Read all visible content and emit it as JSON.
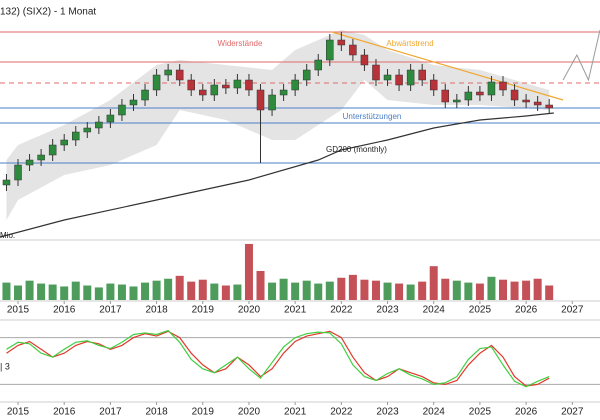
{
  "chart_data": {
    "type": "candlestick",
    "title": "132) (SIX2) - 1 Monat",
    "xlim": [
      2014.61,
      2027.6
    ],
    "xticks": [
      2015,
      2016,
      2017,
      2018,
      2019,
      2020,
      2021,
      2022,
      2023,
      2024,
      2025,
      2026,
      2027
    ],
    "ylim": [
      0,
      240
    ],
    "up_color": "#2e8b3e",
    "down_color": "#b8323a",
    "x": [
      2014.75,
      2015,
      2015.25,
      2015.5,
      2015.75,
      2016,
      2016.25,
      2016.5,
      2016.75,
      2017,
      2017.25,
      2017.5,
      2017.75,
      2018,
      2018.25,
      2018.5,
      2018.75,
      2019,
      2019.25,
      2019.5,
      2019.75,
      2020,
      2020.25,
      2020.5,
      2020.75,
      2021,
      2021.25,
      2021.5,
      2021.75,
      2022,
      2022.25,
      2022.5,
      2022.75,
      2023,
      2023.25,
      2023.5,
      2023.75,
      2024,
      2024.25,
      2024.5,
      2024.75,
      2025,
      2025.25,
      2025.5,
      2025.75,
      2026,
      2026.25,
      2026.5
    ],
    "open": [
      55,
      60,
      75,
      80,
      85,
      95,
      100,
      108,
      112,
      118,
      125,
      135,
      140,
      150,
      165,
      170,
      160,
      150,
      145,
      155,
      152,
      160,
      150,
      130,
      145,
      150,
      160,
      170,
      180,
      200,
      195,
      185,
      175,
      160,
      165,
      155,
      170,
      160,
      150,
      138,
      140,
      148,
      145,
      158,
      150,
      140,
      138,
      135
    ],
    "high": [
      66,
      81,
      86,
      91,
      101,
      106,
      114,
      118,
      124,
      131,
      141,
      146,
      156,
      171,
      176,
      176,
      166,
      156,
      161,
      161,
      166,
      166,
      156,
      151,
      156,
      166,
      176,
      186,
      206,
      208,
      201,
      191,
      181,
      171,
      171,
      176,
      176,
      166,
      156,
      146,
      154,
      154,
      164,
      164,
      156,
      146,
      144,
      141
    ],
    "low": [
      49,
      54,
      69,
      74,
      79,
      89,
      94,
      102,
      106,
      112,
      119,
      129,
      134,
      144,
      159,
      154,
      144,
      139,
      139,
      146,
      146,
      144,
      77,
      124,
      139,
      144,
      154,
      164,
      174,
      189,
      179,
      169,
      154,
      154,
      149,
      149,
      154,
      144,
      132,
      132,
      134,
      139,
      139,
      144,
      134,
      132,
      129,
      126
    ],
    "close": [
      60,
      75,
      80,
      85,
      95,
      100,
      108,
      112,
      118,
      125,
      135,
      140,
      150,
      165,
      170,
      160,
      150,
      145,
      155,
      152,
      160,
      150,
      130,
      145,
      150,
      160,
      170,
      180,
      200,
      195,
      185,
      175,
      160,
      165,
      155,
      170,
      160,
      150,
      138,
      140,
      148,
      145,
      158,
      150,
      140,
      138,
      135,
      132
    ],
    "levels": [
      {
        "value": 208,
        "color": "#e06a6a",
        "dashed": false
      },
      {
        "value": 178,
        "color": "#e06a6a",
        "dashed": false
      },
      {
        "value": 157,
        "color": "#e06a6a",
        "dashed": true
      },
      {
        "value": 132,
        "color": "#4a7fc8",
        "dashed": false
      },
      {
        "value": 117,
        "color": "#4a7fc8",
        "dashed": false
      },
      {
        "value": 77,
        "color": "#4a7fc8",
        "dashed": false
      }
    ],
    "resistance_label": "Widerstände",
    "support_label": "Unterstützungen",
    "band": {
      "color": "#d9d9d9",
      "x": [
        2014.75,
        2015,
        2016,
        2017,
        2018,
        2018.5,
        2019.5,
        2020.5,
        2021,
        2022,
        2022.5,
        2023,
        2024,
        2025,
        2026.5
      ],
      "upper": [
        80,
        95,
        115,
        140,
        175,
        180,
        175,
        170,
        190,
        210,
        205,
        190,
        175,
        170,
        150
      ],
      "lower": [
        20,
        40,
        65,
        75,
        95,
        130,
        120,
        100,
        100,
        130,
        160,
        140,
        135,
        135,
        130
      ]
    },
    "gd200": {
      "name": "GD200 (monthly)",
      "color": "#333333",
      "x": [
        2014.61,
        2016,
        2018,
        2020,
        2021.5,
        2022,
        2023,
        2024,
        2025,
        2026,
        2026.6
      ],
      "values": [
        3,
        20,
        40,
        60,
        80,
        90,
        100,
        112,
        120,
        124,
        127
      ]
    },
    "trendline": {
      "name": "Abwärtstrend",
      "color": "#f0a830",
      "x": [
        2021.8,
        2026.8
      ],
      "values": [
        208,
        140
      ]
    },
    "projection": {
      "color": "#9a9a9a",
      "x": [
        2026.8,
        2027.1,
        2027.35,
        2027.6
      ],
      "values": [
        160,
        185,
        160,
        210
      ]
    },
    "volume": {
      "label": "Mio.",
      "ylim": [
        0,
        60
      ],
      "color": "#b8323a",
      "values": [
        18,
        15,
        20,
        17,
        16,
        14,
        19,
        15,
        13,
        17,
        16,
        14,
        18,
        20,
        22,
        25,
        19,
        21,
        17,
        15,
        16,
        58,
        30,
        18,
        22,
        18,
        20,
        17,
        19,
        23,
        26,
        21,
        20,
        18,
        17,
        16,
        19,
        35,
        22,
        20,
        18,
        17,
        24,
        21,
        19,
        20,
        22,
        15
      ]
    },
    "oscillator": {
      "label": "| 3",
      "ylim": [
        0,
        100
      ],
      "levels": [
        80,
        20
      ],
      "series": [
        {
          "color": "#e0392b",
          "values": [
            60,
            70,
            75,
            65,
            55,
            60,
            70,
            75,
            72,
            65,
            70,
            80,
            85,
            82,
            88,
            80,
            60,
            45,
            35,
            40,
            55,
            45,
            30,
            40,
            60,
            75,
            82,
            85,
            88,
            80,
            55,
            35,
            25,
            30,
            40,
            35,
            30,
            22,
            20,
            25,
            45,
            60,
            70,
            55,
            30,
            18,
            20,
            28
          ]
        },
        {
          "color": "#3fcf3f",
          "values": [
            65,
            74,
            72,
            60,
            55,
            65,
            74,
            76,
            70,
            66,
            74,
            84,
            86,
            84,
            89,
            74,
            52,
            40,
            35,
            45,
            55,
            40,
            28,
            48,
            68,
            80,
            85,
            87,
            86,
            72,
            45,
            30,
            25,
            34,
            40,
            32,
            27,
            20,
            22,
            30,
            52,
            66,
            68,
            45,
            24,
            17,
            24,
            30
          ]
        }
      ]
    }
  }
}
